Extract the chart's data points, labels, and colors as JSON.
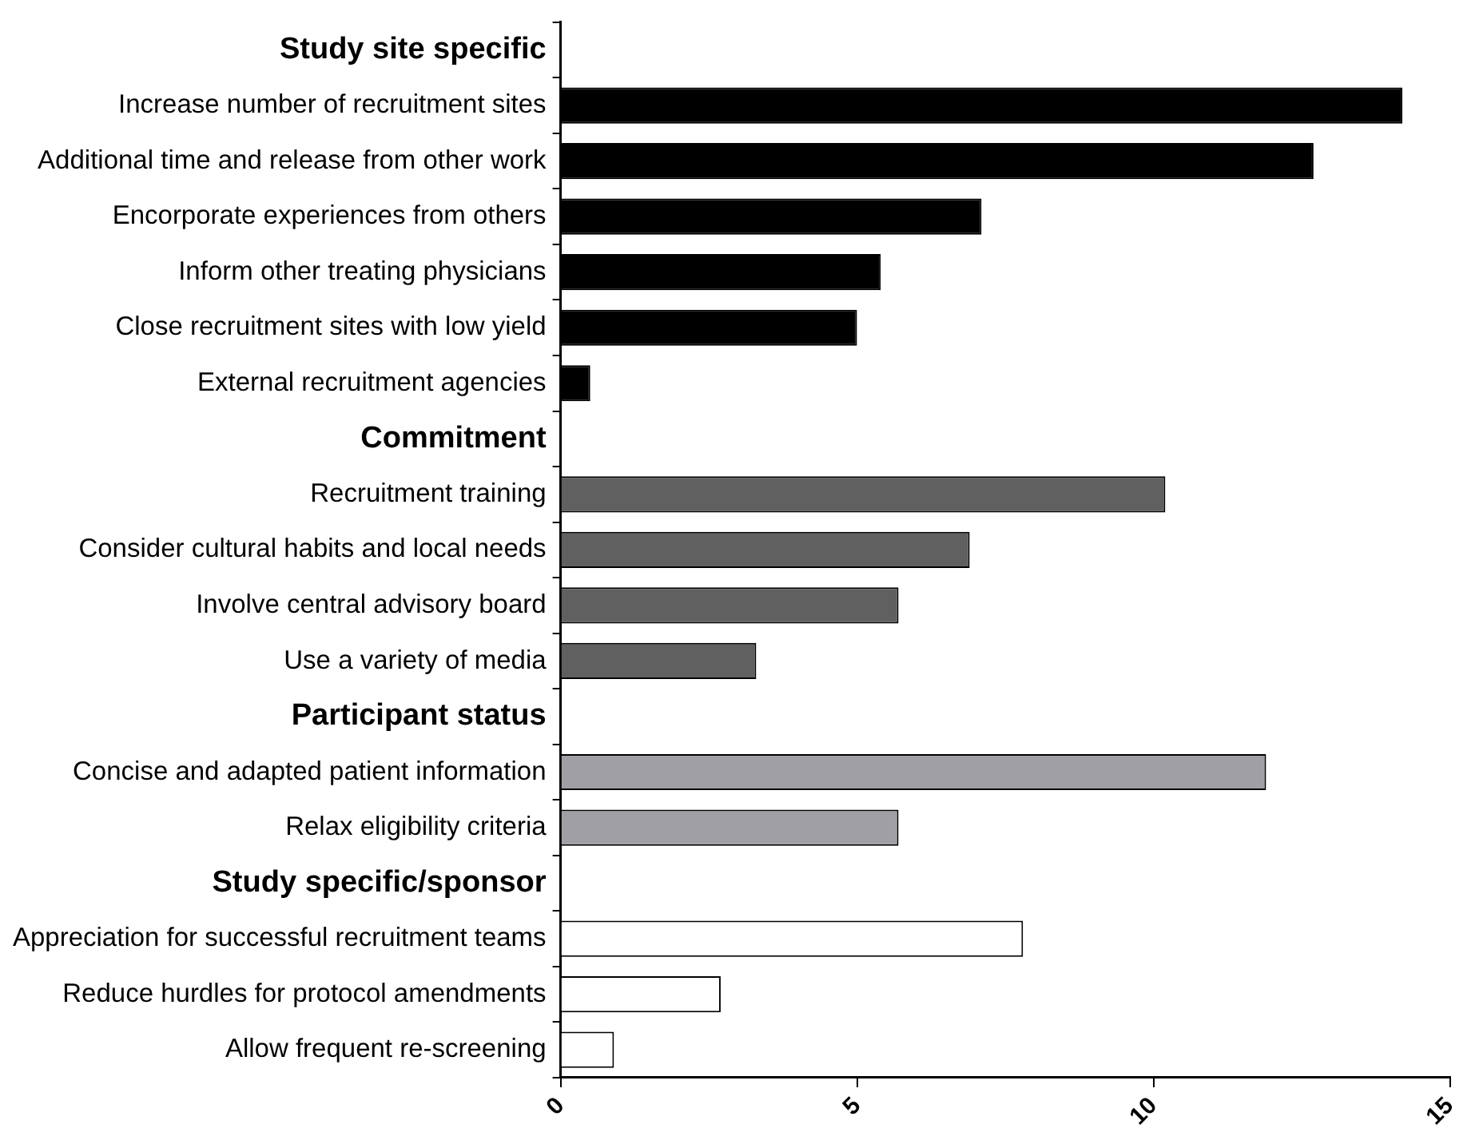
{
  "chart_data": {
    "type": "bar",
    "orientation": "horizontal",
    "categories": [
      "Study site specific",
      "Increase number of recruitment sites",
      "Additional time and release from other work",
      "Encorporate experiences from others",
      "Inform other treating physicians",
      "Close recruitment sites with low yield",
      "External recruitment agencies",
      "Commitment",
      "Recruitment training",
      "Consider cultural habits and local needs",
      "Involve central advisory board",
      "Use a variety of media",
      "Participant status",
      "Concise and adapted patient information",
      "Relax eligibility criteria",
      "Study specific/sponsor",
      "Appreciation for successful recruitment teams",
      "Reduce hurdles for protocol amendments",
      "Allow frequent re-screening"
    ],
    "series": [
      {
        "color": "#000000",
        "values": [
          null,
          14.2,
          12.7,
          7.1,
          5.4,
          5.0,
          0.5,
          null,
          null,
          null,
          null,
          null,
          null,
          null,
          null,
          null,
          null,
          null,
          null
        ]
      },
      {
        "color": "#606060",
        "values": [
          null,
          null,
          null,
          null,
          null,
          null,
          null,
          null,
          10.2,
          6.9,
          5.7,
          3.3,
          null,
          null,
          null,
          null,
          null,
          null,
          null
        ]
      },
      {
        "color": "#a0a0a4",
        "values": [
          null,
          null,
          null,
          null,
          null,
          null,
          null,
          null,
          null,
          null,
          null,
          null,
          null,
          11.9,
          5.7,
          null,
          null,
          null,
          null
        ]
      },
      {
        "color": "#ffffff",
        "values": [
          null,
          null,
          null,
          null,
          null,
          null,
          null,
          null,
          null,
          null,
          null,
          null,
          null,
          null,
          null,
          null,
          7.8,
          2.7,
          0.9
        ]
      }
    ],
    "xlim": [
      0,
      15
    ],
    "xticks": [
      0,
      5,
      10,
      15
    ],
    "grid": false,
    "legend": false
  }
}
